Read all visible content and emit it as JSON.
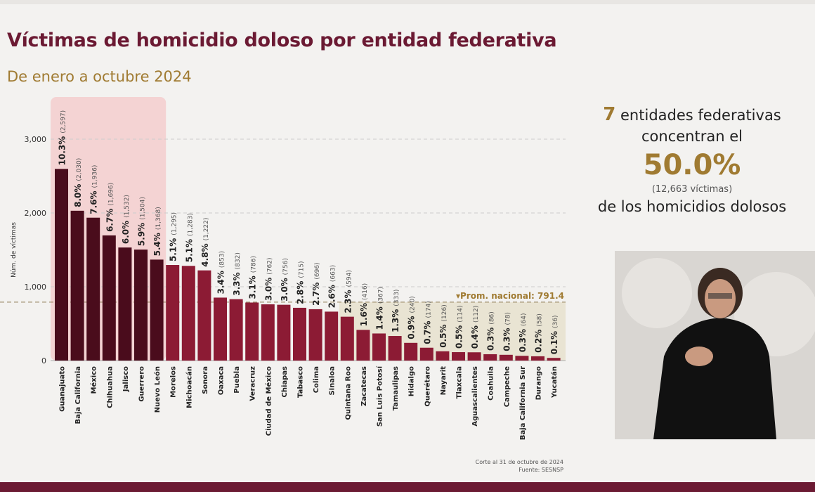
{
  "header": {
    "title": "Víctimas de homicidio doloso por entidad federativa",
    "subtitle": "De enero a octubre 2024"
  },
  "summary": {
    "count": "7",
    "line1": "entidades federativas",
    "line2": "concentran el",
    "percent": "50.0%",
    "victims": "(12,663  víctimas)",
    "line3": "de los homicidios dolosos"
  },
  "footnote": {
    "cutoff": "Corte al 31 de octubre de 2024",
    "source": "Fuente: SESNSP"
  },
  "chart_data": {
    "type": "bar",
    "ylabel": "Núm. de víctimas",
    "ylim": [
      0,
      3300
    ],
    "yticks": [
      0,
      1000,
      2000,
      3000
    ],
    "ytick_labels": [
      "0",
      "1,000",
      "2,000",
      "3,000"
    ],
    "grid": true,
    "average": {
      "label": "▾Prom. nacional: 791.4",
      "value": 791.4
    },
    "highlight_count": 7,
    "colors": {
      "top": "#4a0c1c",
      "rest": "#8c1b34",
      "highlight_bg": "#f4d3d3",
      "average_bg": "#e9e4d3",
      "average_text": "#a07b32"
    },
    "categories": [
      "Guanajuato",
      "Baja California",
      "México",
      "Chihuahua",
      "Jalisco",
      "Guerrero",
      "Nuevo León",
      "Morelos",
      "Michoacán",
      "Sonora",
      "Oaxaca",
      "Puebla",
      "Veracruz",
      "Ciudad de México",
      "Chiapas",
      "Tabasco",
      "Colima",
      "Sinaloa",
      "Quintana Roo",
      "Zacatecas",
      "San Luis Potosí",
      "Tamaulipas",
      "Hidalgo",
      "Querétaro",
      "Nayarit",
      "Tlaxcala",
      "Aguascalientes",
      "Coahuila",
      "Campeche",
      "Baja California Sur",
      "Durango",
      "Yucatán"
    ],
    "values": [
      2597,
      2030,
      1936,
      1696,
      1532,
      1504,
      1368,
      1295,
      1283,
      1222,
      853,
      832,
      786,
      762,
      756,
      715,
      696,
      663,
      594,
      416,
      367,
      333,
      240,
      174,
      126,
      114,
      112,
      86,
      78,
      64,
      58,
      36
    ],
    "value_labels": [
      "(2,597)",
      "(2,030)",
      "(1,936)",
      "(1,696)",
      "(1,532)",
      "(1,504)",
      "(1,368)",
      "(1,295)",
      "(1,283)",
      "(1,222)",
      "(853)",
      "(832)",
      "(786)",
      "(762)",
      "(756)",
      "(715)",
      "(696)",
      "(663)",
      "(594)",
      "(416)",
      "(367)",
      "(333)",
      "(240)",
      "(174)",
      "(126)",
      "(114)",
      "(112)",
      "(86)",
      "(78)",
      "(64)",
      "(58)",
      "(36)"
    ],
    "percent_labels": [
      "10.3%",
      "8.0%",
      "7.6%",
      "6.7%",
      "6.0%",
      "5.9%",
      "5.4%",
      "5.1%",
      "5.1%",
      "4.8%",
      "3.4%",
      "3.3%",
      "3.1%",
      "3.0%",
      "3.0%",
      "2.8%",
      "2.7%",
      "2.6%",
      "2.3%",
      "1.6%",
      "1.4%",
      "1.3%",
      "0.9%",
      "0.7%",
      "0.5%",
      "0.5%",
      "0.4%",
      "0.3%",
      "0.3%",
      "0.3%",
      "0.2%",
      "0.1%"
    ]
  }
}
